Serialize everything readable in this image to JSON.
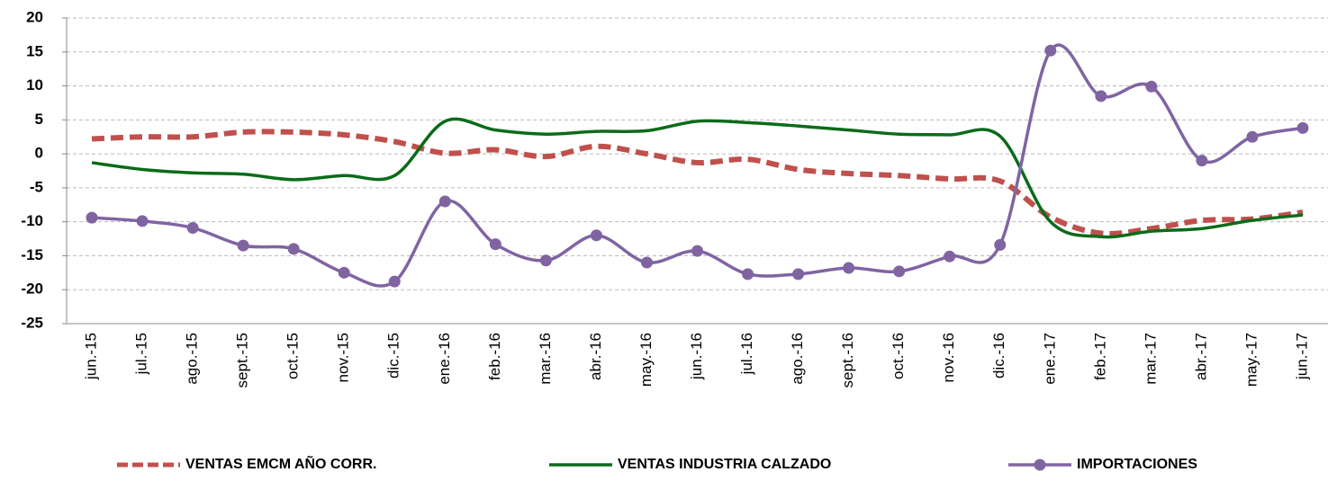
{
  "chart_data": {
    "type": "line",
    "categories": [
      "jun.-15",
      "jul.-15",
      "ago.-15",
      "sept.-15",
      "oct.-15",
      "nov.-15",
      "dic.-15",
      "ene.-16",
      "feb.-16",
      "mar.-16",
      "abr.-16",
      "may.-16",
      "jun.-16",
      "jul.-16",
      "ago.-16",
      "sept.-16",
      "oct.-16",
      "nov.-16",
      "dic.-16",
      "ene.-17",
      "feb.-17",
      "mar.-17",
      "abr.-17",
      "may.-17",
      "jun.-17"
    ],
    "series": [
      {
        "name": "VENTAS EMCM  AÑO CORR.",
        "color": "#c0504d",
        "dashed": true,
        "marker": false,
        "values": [
          2.2,
          2.5,
          2.5,
          3.2,
          3.2,
          2.8,
          1.8,
          0.1,
          0.6,
          -0.4,
          1.1,
          0,
          -1.3,
          -0.8,
          -2.3,
          -2.9,
          -3.2,
          -3.7,
          -4,
          -9.3,
          -11.7,
          -11,
          -9.8,
          -9.6,
          -8.6
        ]
      },
      {
        "name": "VENTAS INDUSTRIA CALZADO",
        "color": "#0b6b1a",
        "dashed": false,
        "marker": false,
        "values": [
          -1.3,
          -2.3,
          -2.8,
          -3,
          -3.8,
          -3.2,
          -3.2,
          4.8,
          3.5,
          2.9,
          3.3,
          3.4,
          4.8,
          4.6,
          4.1,
          3.5,
          2.9,
          2.8,
          2.6,
          -10,
          -12.2,
          -11.4,
          -11,
          -9.8,
          -9
        ]
      },
      {
        "name": "IMPORTACIONES",
        "color": "#8064a2",
        "dashed": false,
        "marker": true,
        "values": [
          -9.4,
          -9.9,
          -10.9,
          -13.5,
          -14,
          -17.5,
          -18.8,
          -7,
          -13.3,
          -15.7,
          -12,
          -16,
          -14.3,
          -17.7,
          -17.7,
          -16.8,
          -17.3,
          -15.1,
          -13.4,
          15.2,
          8.5,
          9.9,
          -1,
          2.5,
          3.8
        ]
      }
    ],
    "ylim": [
      -25,
      20
    ],
    "yticks": [
      -25,
      -20,
      -15,
      -10,
      -5,
      0,
      5,
      10,
      15,
      20
    ],
    "grid": true,
    "smooth": true,
    "legend": "bottom"
  }
}
